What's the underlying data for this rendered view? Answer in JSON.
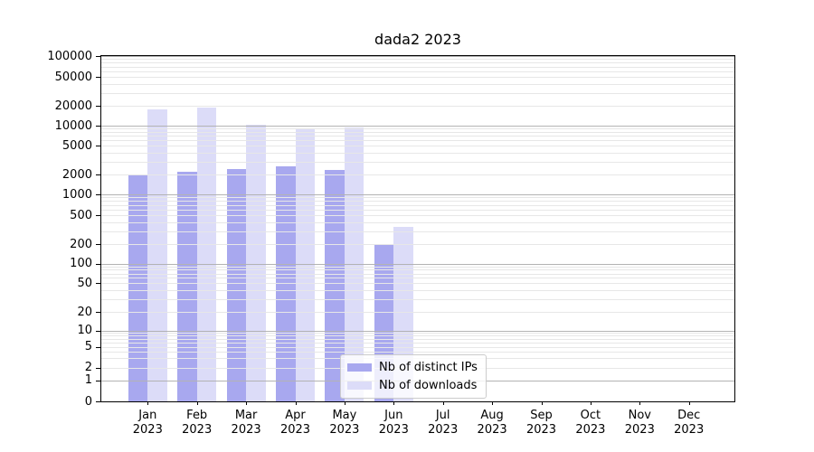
{
  "title": "dada2 2023",
  "chart_data": {
    "type": "bar",
    "title": "dada2 2023",
    "xlabel": "",
    "ylabel": "",
    "yscale": "symlog",
    "ylim": [
      0,
      100000
    ],
    "grid": "horizontal",
    "legend_position": "lower center (inside axes)",
    "categories": [
      "Jan 2023",
      "Feb 2023",
      "Mar 2023",
      "Apr 2023",
      "May 2023",
      "Jun 2023",
      "Jul 2023",
      "Aug 2023",
      "Sep 2023",
      "Oct 2023",
      "Nov 2023",
      "Dec 2023"
    ],
    "series": [
      {
        "name": "Nb of distinct IPs",
        "color": "#a8a8ef",
        "values": [
          1950,
          2200,
          2400,
          2600,
          2300,
          200,
          0,
          0,
          0,
          0,
          0,
          0
        ]
      },
      {
        "name": "Nb of downloads",
        "color": "#dcdcf8",
        "values": [
          17500,
          18800,
          10200,
          8800,
          9500,
          340,
          0,
          0,
          0,
          0,
          0,
          0
        ]
      }
    ],
    "y_tick_labels": [
      "0",
      "1",
      "2",
      "5",
      "10",
      "20",
      "50",
      "100",
      "200",
      "500",
      "1000",
      "2000",
      "5000",
      "10000",
      "20000",
      "50000",
      "100000"
    ]
  },
  "colors": {
    "background": "#ffffff",
    "bar_distinct_ips": "#a8a8ef",
    "bar_downloads": "#dcdcf8",
    "grid_major": "#b3b3b3",
    "grid_minor": "#e7e7e7",
    "axis_spine": "#000000",
    "legend_border": "#cccccc"
  }
}
